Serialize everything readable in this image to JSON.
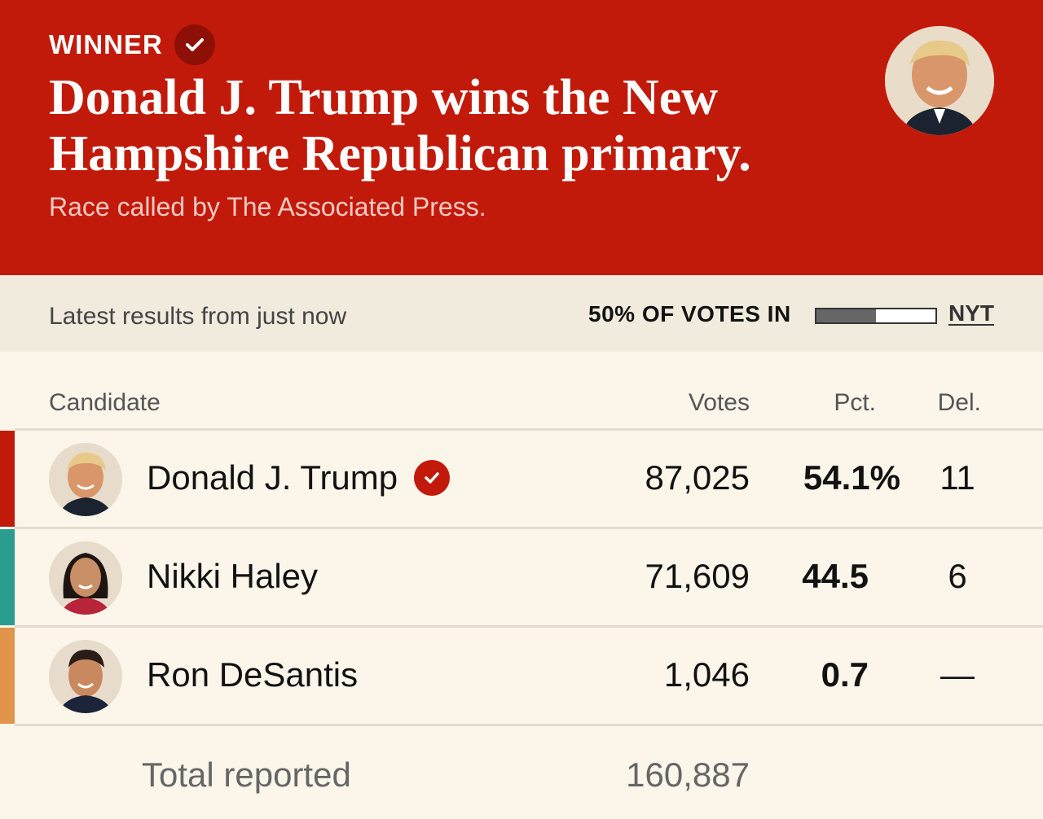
{
  "banner": {
    "winner_label": "WINNER",
    "headline": "Donald J. Trump wins the New Hampshire Republican primary.",
    "subhead": "Race called by The Associated Press.",
    "color": "#c21a0a"
  },
  "status": {
    "latest": "Latest results from just now",
    "votes_in": "50% OF VOTES IN",
    "votes_in_fraction": 0.5,
    "source_link": "NYT"
  },
  "table": {
    "headers": {
      "candidate": "Candidate",
      "votes": "Votes",
      "pct": "Pct.",
      "del": "Del."
    },
    "rows": [
      {
        "name": "Donald J. Trump",
        "votes": "87,025",
        "pct": "54.1%",
        "del": "11",
        "winner": true,
        "color": "#c21a0a"
      },
      {
        "name": "Nikki Haley",
        "votes": "71,609",
        "pct": "44.5",
        "del": "6",
        "winner": false,
        "color": "#2a9d8f"
      },
      {
        "name": "Ron DeSantis",
        "votes": "1,046",
        "pct": "0.7",
        "del": "—",
        "winner": false,
        "color": "#e0944c"
      }
    ],
    "total_label": "Total reported",
    "total_value": "160,887"
  }
}
